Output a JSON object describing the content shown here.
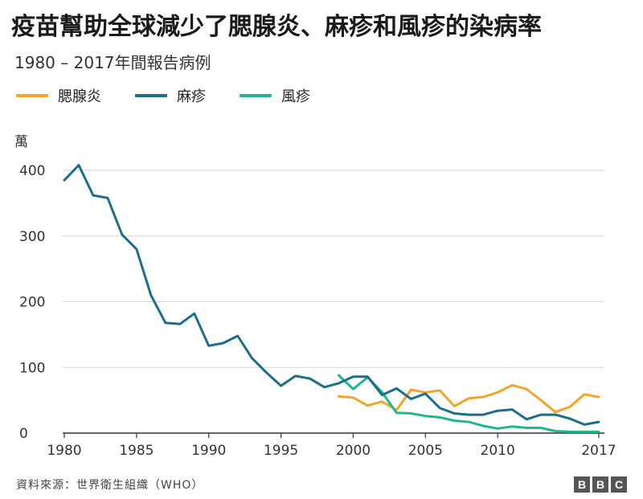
{
  "title": "疫苗幫助全球減少了腮腺炎、麻疹和風疹的染病率",
  "subtitle": "1980 – 2017年間報告病例",
  "unit_label": "萬",
  "source": "資料來源：世界衛生組織（WHO）",
  "brand": [
    "B",
    "B",
    "C"
  ],
  "colors": {
    "mumps": "#f2a629",
    "measles": "#1b6f8c",
    "rubella": "#1fb78f",
    "grid": "#d6d6d6",
    "axis": "#333333"
  },
  "chart_data": {
    "type": "line",
    "title": "疫苗幫助全球減少了腮腺炎、麻疹和風疹的染病率",
    "subtitle": "1980 – 2017年間報告病例",
    "ylabel": "萬",
    "xlabel": "",
    "xlim": [
      1980,
      2017
    ],
    "ylim": [
      0,
      400
    ],
    "yticks": [
      0,
      100,
      200,
      300,
      400
    ],
    "xticks": [
      1980,
      1985,
      1990,
      1995,
      2000,
      2005,
      2010,
      2017
    ],
    "grid": true,
    "legend_position": "top-left",
    "series": [
      {
        "name": "腮腺炎",
        "color": "#f2a629",
        "x": [
          1999,
          2000,
          2001,
          2002,
          2003,
          2004,
          2005,
          2006,
          2007,
          2008,
          2009,
          2010,
          2011,
          2012,
          2013,
          2014,
          2015,
          2016,
          2017
        ],
        "values": [
          56,
          54,
          42,
          48,
          35,
          66,
          62,
          65,
          41,
          53,
          55,
          62,
          73,
          67,
          50,
          32,
          40,
          59,
          55
        ]
      },
      {
        "name": "麻疹",
        "color": "#1b6f8c",
        "x": [
          1980,
          1981,
          1982,
          1983,
          1984,
          1985,
          1986,
          1987,
          1988,
          1989,
          1990,
          1991,
          1992,
          1993,
          1994,
          1995,
          1996,
          1997,
          1998,
          1999,
          2000,
          2001,
          2002,
          2003,
          2004,
          2005,
          2006,
          2007,
          2008,
          2009,
          2010,
          2011,
          2012,
          2013,
          2014,
          2015,
          2016,
          2017
        ],
        "values": [
          385,
          408,
          362,
          358,
          302,
          280,
          210,
          168,
          166,
          182,
          133,
          137,
          148,
          114,
          92,
          72,
          87,
          83,
          70,
          76,
          86,
          86,
          58,
          68,
          52,
          60,
          38,
          30,
          28,
          28,
          34,
          36,
          21,
          28,
          28,
          22,
          13,
          17
        ]
      },
      {
        "name": "風疹",
        "color": "#1fb78f",
        "x": [
          1999,
          2000,
          2001,
          2002,
          2003,
          2004,
          2005,
          2006,
          2007,
          2008,
          2009,
          2010,
          2011,
          2012,
          2013,
          2014,
          2015,
          2016,
          2017
        ],
        "values": [
          88,
          67,
          85,
          62,
          31,
          30,
          26,
          24,
          19,
          17,
          11,
          7,
          10,
          8,
          8,
          3,
          2,
          2,
          2
        ]
      }
    ]
  }
}
